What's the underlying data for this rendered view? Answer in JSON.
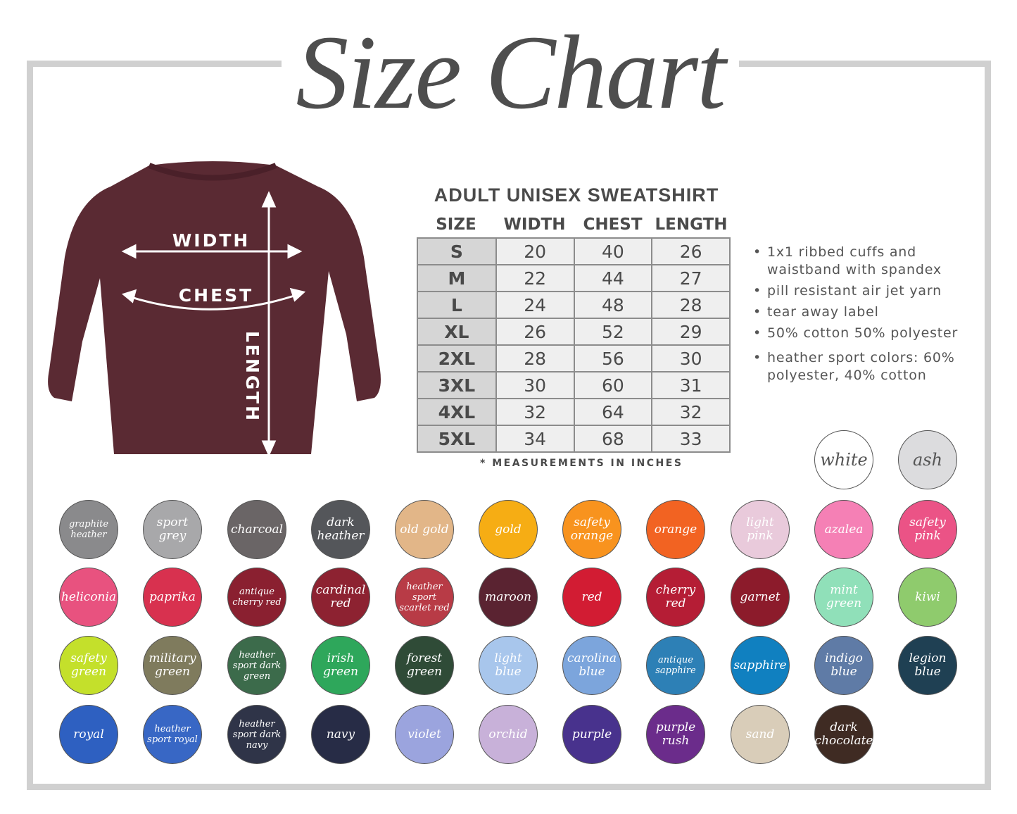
{
  "title": "Size Chart",
  "table": {
    "title": "ADULT UNISEX SWEATSHIRT",
    "headers": [
      "SIZE",
      "WIDTH",
      "CHEST",
      "LENGTH"
    ],
    "rows": [
      [
        "S",
        "20",
        "40",
        "26"
      ],
      [
        "M",
        "22",
        "44",
        "27"
      ],
      [
        "L",
        "24",
        "48",
        "28"
      ],
      [
        "XL",
        "26",
        "52",
        "29"
      ],
      [
        "2XL",
        "28",
        "56",
        "30"
      ],
      [
        "3XL",
        "30",
        "60",
        "31"
      ],
      [
        "4XL",
        "32",
        "64",
        "32"
      ],
      [
        "5XL",
        "34",
        "68",
        "33"
      ]
    ],
    "note": "* MEASUREMENTS IN INCHES"
  },
  "shirt": {
    "color": "#5a2a33",
    "labels": {
      "width": "WIDTH",
      "chest": "CHEST",
      "length": "LENGTH"
    }
  },
  "features": [
    "1x1 ribbed cuffs and waistband with spandex",
    "pill resistant air jet yarn",
    "tear away label",
    "50% cotton 50% polyester",
    "heather sport colors: 60% polyester, 40% cotton"
  ],
  "colors_top": [
    {
      "name": "white",
      "hex": "#ffffff",
      "text": "#555555"
    },
    {
      "name": "ash",
      "hex": "#dcdcde",
      "text": "#555555"
    }
  ],
  "colors": [
    [
      {
        "name": "graphite heather",
        "hex": "#8a8a8c"
      },
      {
        "name": "sport grey",
        "hex": "#a8a8aa"
      },
      {
        "name": "charcoal",
        "hex": "#6a6566"
      },
      {
        "name": "dark heather",
        "hex": "#54565a"
      },
      {
        "name": "old gold",
        "hex": "#e2b688"
      },
      {
        "name": "gold",
        "hex": "#f6ad14"
      },
      {
        "name": "safety orange",
        "hex": "#f8931e"
      },
      {
        "name": "orange",
        "hex": "#f26322"
      },
      {
        "name": "light pink",
        "hex": "#e9cadb"
      },
      {
        "name": "azalea",
        "hex": "#f580b5"
      },
      {
        "name": "safety pink",
        "hex": "#eb5386"
      }
    ],
    [
      {
        "name": "heliconia",
        "hex": "#e8527f"
      },
      {
        "name": "paprika",
        "hex": "#d8314f"
      },
      {
        "name": "antique cherry red",
        "hex": "#8a2030"
      },
      {
        "name": "cardinal red",
        "hex": "#8d2231"
      },
      {
        "name": "heather sport scarlet red",
        "hex": "#b83b46"
      },
      {
        "name": "maroon",
        "hex": "#5a2331"
      },
      {
        "name": "red",
        "hex": "#d21c33"
      },
      {
        "name": "cherry red",
        "hex": "#b51d35"
      },
      {
        "name": "garnet",
        "hex": "#8c1b2b"
      },
      {
        "name": "mint green",
        "hex": "#90e0b9"
      },
      {
        "name": "kiwi",
        "hex": "#8fcb6d"
      }
    ],
    [
      {
        "name": "safety green",
        "hex": "#c4e02b"
      },
      {
        "name": "military green",
        "hex": "#7f7b5d"
      },
      {
        "name": "heather sport dark green",
        "hex": "#3c6b4b"
      },
      {
        "name": "irish green",
        "hex": "#2ea75b"
      },
      {
        "name": "forest green",
        "hex": "#2f4b37"
      },
      {
        "name": "light blue",
        "hex": "#a8c6ec"
      },
      {
        "name": "carolina blue",
        "hex": "#7ca5dc"
      },
      {
        "name": "antique sapphire",
        "hex": "#2d80b6"
      },
      {
        "name": "sapphire",
        "hex": "#1080c0"
      },
      {
        "name": "indigo blue",
        "hex": "#5f7ba6"
      },
      {
        "name": "legion blue",
        "hex": "#1f4053"
      }
    ],
    [
      {
        "name": "royal",
        "hex": "#2e60c1"
      },
      {
        "name": "heather sport royal",
        "hex": "#3867c5"
      },
      {
        "name": "heather sport dark navy",
        "hex": "#2f3448"
      },
      {
        "name": "navy",
        "hex": "#272c46"
      },
      {
        "name": "violet",
        "hex": "#9ba4de"
      },
      {
        "name": "orchid",
        "hex": "#c8b1d9"
      },
      {
        "name": "purple",
        "hex": "#48328d"
      },
      {
        "name": "purple rush",
        "hex": "#6b2c8b"
      },
      {
        "name": "sand",
        "hex": "#d9cdb9"
      },
      {
        "name": "dark chocolate",
        "hex": "#3f2b23"
      }
    ]
  ]
}
